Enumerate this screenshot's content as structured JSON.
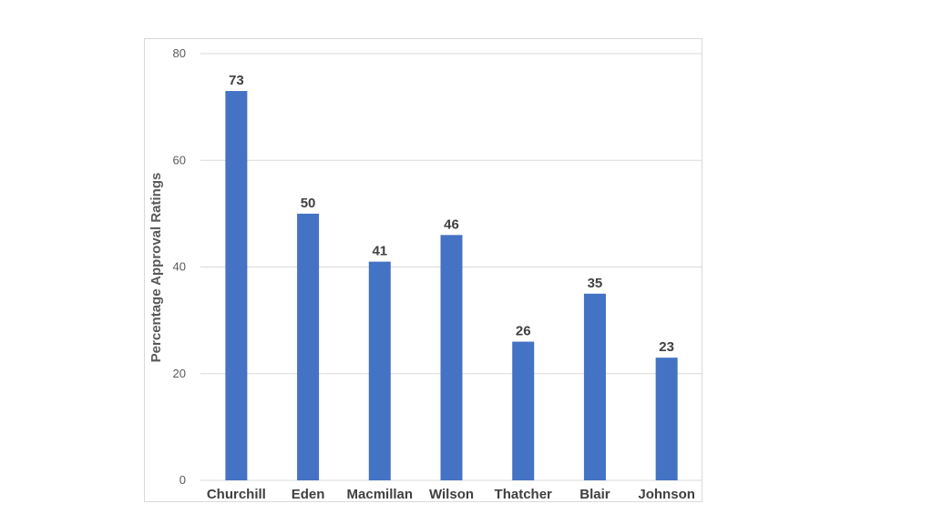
{
  "chart_data": {
    "type": "bar",
    "categories": [
      "Churchill",
      "Eden",
      "Macmillan",
      "Wilson",
      "Thatcher",
      "Blair",
      "Johnson"
    ],
    "values": [
      73,
      50,
      41,
      46,
      26,
      35,
      23
    ],
    "data_labels": [
      "73",
      "50",
      "41",
      "46",
      "26",
      "35",
      "23"
    ],
    "title": "",
    "xlabel": "",
    "ylabel": "Percentage Approval Ratings",
    "ylim": [
      0,
      80
    ],
    "yticks": [
      0,
      20,
      40,
      60,
      80
    ],
    "ytick_labels": [
      "0",
      "20",
      "40",
      "60",
      "80"
    ],
    "grid": true,
    "legend": "none",
    "bar_color": "#4472c4"
  }
}
